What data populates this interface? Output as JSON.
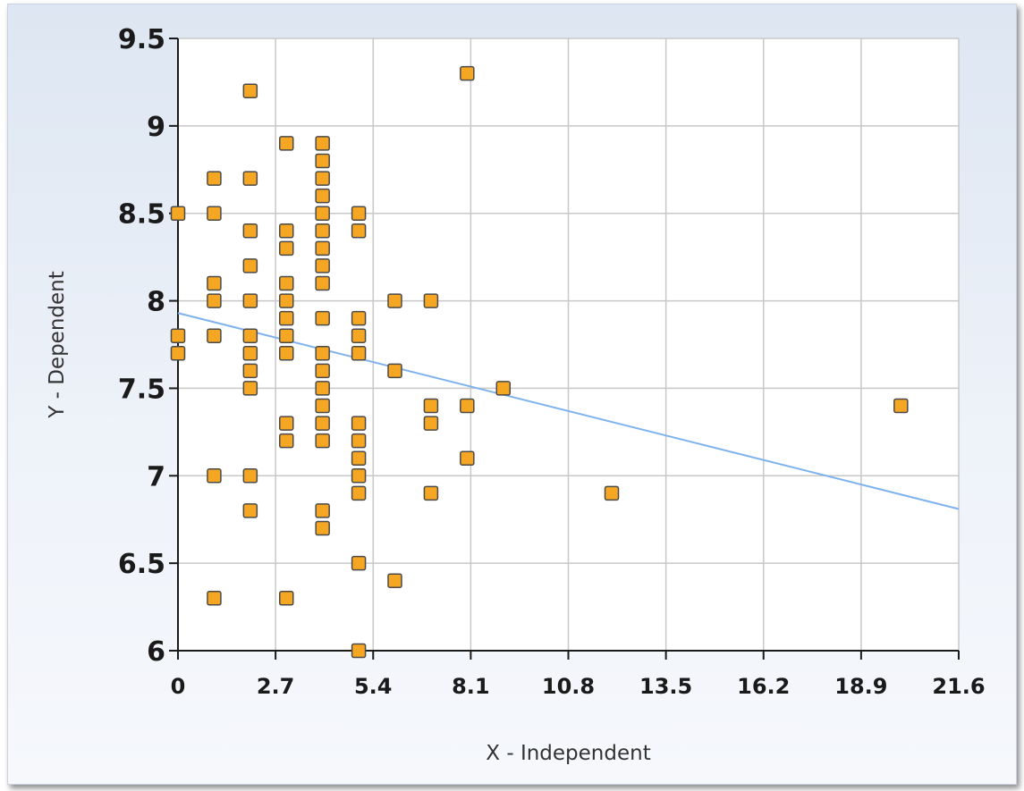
{
  "chart_data": {
    "type": "scatter",
    "title": "",
    "xlabel": "X - Independent",
    "ylabel": "Y - Dependent",
    "xlim": [
      0,
      21.6
    ],
    "ylim": [
      6,
      9.5
    ],
    "x_ticks": [
      "0",
      "2.7",
      "5.4",
      "8.1",
      "10.8",
      "13.5",
      "16.2",
      "18.9",
      "21.6"
    ],
    "y_ticks": [
      "6",
      "6.5",
      "7",
      "7.5",
      "8",
      "8.5",
      "9",
      "9.5"
    ],
    "grid": true,
    "legend": "none",
    "colors": {
      "marker_fill": "#f5a623",
      "marker_stroke": "#4a4a4a",
      "trend_line": "#7fb2ec",
      "grid": "#c8c8c8",
      "axis": "#1a1a1a"
    },
    "series": [
      {
        "points": [
          [
            0,
            8.5
          ],
          [
            0,
            7.8
          ],
          [
            0,
            7.7
          ],
          [
            1,
            8.7
          ],
          [
            1,
            8.5
          ],
          [
            1,
            8.1
          ],
          [
            1,
            8.0
          ],
          [
            1,
            7.8
          ],
          [
            1,
            7.0
          ],
          [
            1,
            6.3
          ],
          [
            2,
            9.2
          ],
          [
            2,
            8.7
          ],
          [
            2,
            8.4
          ],
          [
            2,
            8.2
          ],
          [
            2,
            8.0
          ],
          [
            2,
            7.8
          ],
          [
            2,
            7.7
          ],
          [
            2,
            7.6
          ],
          [
            2,
            7.5
          ],
          [
            2,
            7.0
          ],
          [
            2,
            6.8
          ],
          [
            3,
            8.9
          ],
          [
            3,
            8.4
          ],
          [
            3,
            8.3
          ],
          [
            3,
            8.1
          ],
          [
            3,
            8.0
          ],
          [
            3,
            7.9
          ],
          [
            3,
            7.8
          ],
          [
            3,
            7.7
          ],
          [
            3,
            7.3
          ],
          [
            3,
            7.2
          ],
          [
            3,
            6.3
          ],
          [
            4,
            8.9
          ],
          [
            4,
            8.8
          ],
          [
            4,
            8.7
          ],
          [
            4,
            8.6
          ],
          [
            4,
            8.5
          ],
          [
            4,
            8.4
          ],
          [
            4,
            8.3
          ],
          [
            4,
            8.2
          ],
          [
            4,
            8.1
          ],
          [
            4,
            7.9
          ],
          [
            4,
            7.7
          ],
          [
            4,
            7.6
          ],
          [
            4,
            7.5
          ],
          [
            4,
            7.4
          ],
          [
            4,
            7.3
          ],
          [
            4,
            7.2
          ],
          [
            4,
            6.8
          ],
          [
            4,
            6.7
          ],
          [
            5,
            8.5
          ],
          [
            5,
            8.4
          ],
          [
            5,
            7.9
          ],
          [
            5,
            7.8
          ],
          [
            5,
            7.7
          ],
          [
            5,
            7.3
          ],
          [
            5,
            7.2
          ],
          [
            5,
            7.1
          ],
          [
            5,
            7.0
          ],
          [
            5,
            6.9
          ],
          [
            5,
            6.5
          ],
          [
            5,
            6.0
          ],
          [
            6,
            8.0
          ],
          [
            6,
            7.6
          ],
          [
            6,
            6.4
          ],
          [
            7,
            8.0
          ],
          [
            7,
            7.4
          ],
          [
            7,
            7.3
          ],
          [
            7,
            6.9
          ],
          [
            8,
            9.3
          ],
          [
            8,
            7.4
          ],
          [
            8,
            7.1
          ],
          [
            9,
            7.5
          ],
          [
            12,
            6.9
          ],
          [
            20,
            7.4
          ]
        ]
      }
    ],
    "trend_line": {
      "x": [
        0,
        21.6
      ],
      "y": [
        7.93,
        6.81
      ]
    }
  }
}
